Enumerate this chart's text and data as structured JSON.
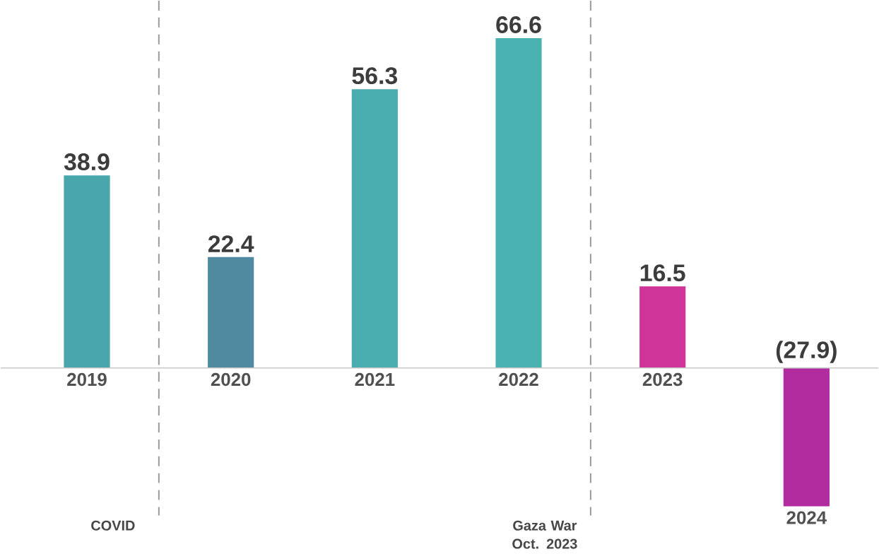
{
  "chart_data": {
    "type": "bar",
    "categories": [
      "2019",
      "2020",
      "2021",
      "2022",
      "2023",
      "2024"
    ],
    "values": [
      38.9,
      22.4,
      56.3,
      66.6,
      16.5,
      -27.9
    ],
    "value_labels": [
      "38.9",
      "22.4",
      "56.3",
      "66.6",
      "16.5",
      "(27.9)"
    ],
    "colors": [
      "#4aa6ad",
      "#4f8aa0",
      "#4aaeb0",
      "#4ab3b2",
      "#cf3498",
      "#b12d9f"
    ],
    "annotations": [
      "COVID",
      "Gaza War Oct. 2023"
    ]
  }
}
